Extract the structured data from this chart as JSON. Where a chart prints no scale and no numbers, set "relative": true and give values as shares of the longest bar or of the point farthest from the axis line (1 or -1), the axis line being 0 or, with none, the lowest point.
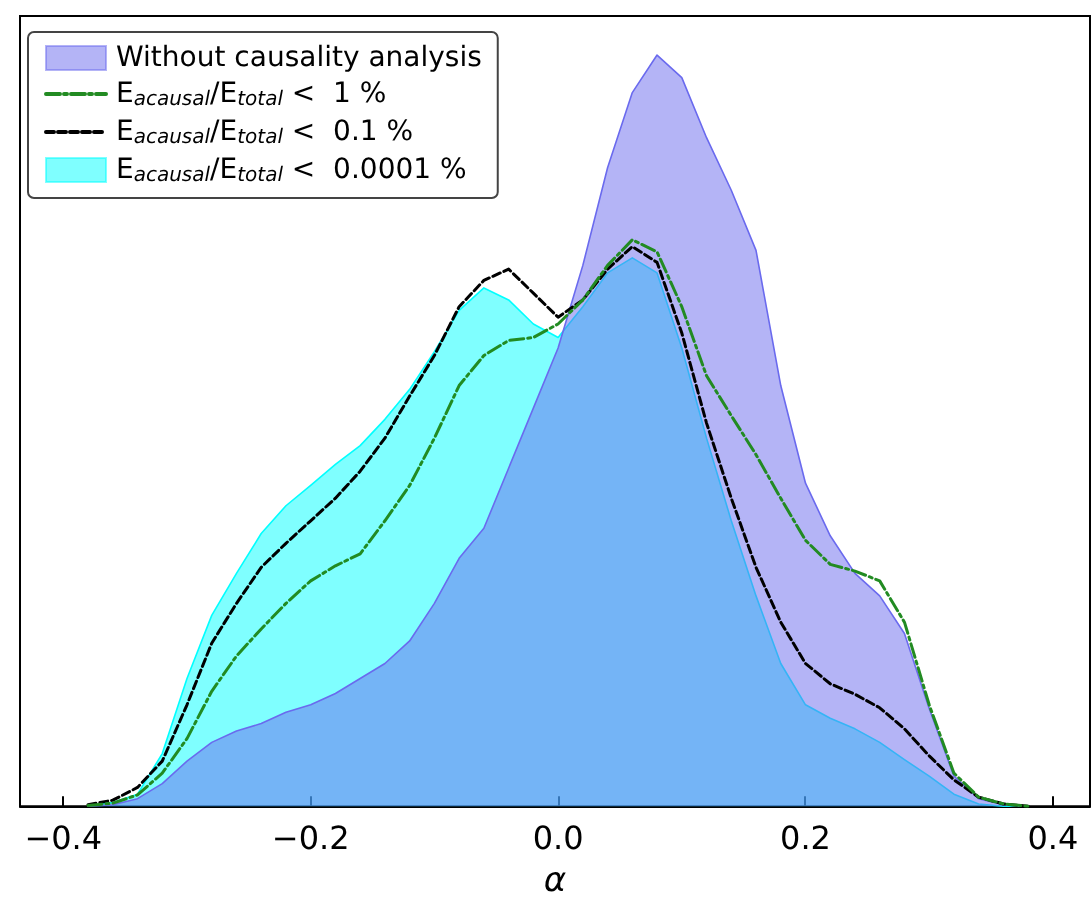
{
  "chart_data": {
    "type": "line",
    "relative": true,
    "xlabel": "α",
    "legend": "top left",
    "grid": false,
    "marker": "none",
    "x": [
      -0.38,
      -0.36,
      -0.34,
      -0.32,
      -0.3,
      -0.28,
      -0.26,
      -0.24,
      -0.22,
      -0.2,
      -0.18,
      -0.16,
      -0.14,
      -0.12,
      -0.1,
      -0.08,
      -0.06,
      -0.04,
      -0.02,
      0,
      0.02,
      0.04,
      0.06,
      0.08,
      0.1,
      0.12,
      0.14,
      0.16,
      0.18,
      0.2,
      0.22,
      0.24,
      0.26,
      0.28,
      0.3,
      0.32,
      0.34,
      0.36,
      0.38
    ],
    "xlim": [
      -0.435,
      0.43
    ],
    "xticks": [
      -0.4,
      -0.2,
      {
        "value": 0,
        "label": "0.0"
      },
      0.2,
      0.4
    ],
    "series": [
      {
        "name": "Without causality analysis",
        "type": "area",
        "color": "#6a6aee",
        "values": [
          0,
          0.002,
          0.01,
          0.03,
          0.06,
          0.085,
          0.1,
          0.11,
          0.125,
          0.135,
          0.15,
          0.17,
          0.19,
          0.22,
          0.27,
          0.33,
          0.37,
          0.45,
          0.53,
          0.61,
          0.72,
          0.85,
          0.95,
          1.0,
          0.97,
          0.89,
          0.82,
          0.74,
          0.56,
          0.43,
          0.36,
          0.31,
          0.28,
          0.23,
          0.13,
          0.04,
          0.01,
          0.002,
          0
        ]
      },
      {
        "name": "E$_{acausal}$/E$_{total}$ <  1 %",
        "type": "line",
        "color": "#228b22",
        "line_style": "dashdot",
        "values": [
          0.001,
          0.004,
          0.015,
          0.044,
          0.09,
          0.153,
          0.2,
          0.236,
          0.27,
          0.3,
          0.32,
          0.336,
          0.38,
          0.427,
          0.49,
          0.56,
          0.6,
          0.62,
          0.624,
          0.642,
          0.674,
          0.72,
          0.754,
          0.738,
          0.665,
          0.573,
          0.52,
          0.468,
          0.41,
          0.354,
          0.322,
          0.313,
          0.3,
          0.245,
          0.135,
          0.044,
          0.012,
          0.003,
          0
        ]
      },
      {
        "name": "E$_{acausal}$/E$_{total}$ <  0.1 %",
        "type": "line",
        "color": "#000000",
        "line_style": "dashed",
        "values": [
          0.002,
          0.008,
          0.025,
          0.06,
          0.135,
          0.217,
          0.27,
          0.318,
          0.35,
          0.38,
          0.41,
          0.446,
          0.49,
          0.546,
          0.6,
          0.665,
          0.7,
          0.715,
          0.683,
          0.651,
          0.674,
          0.715,
          0.745,
          0.724,
          0.63,
          0.51,
          0.41,
          0.318,
          0.245,
          0.19,
          0.163,
          0.149,
          0.131,
          0.103,
          0.067,
          0.035,
          0.012,
          0.003,
          0
        ]
      },
      {
        "name": "E$_{acausal}$/E$_{total}$ <  0.0001 %",
        "type": "area",
        "color": "#00ffff",
        "values": [
          0.001,
          0.005,
          0.016,
          0.07,
          0.17,
          0.254,
          0.31,
          0.363,
          0.4,
          0.427,
          0.455,
          0.48,
          0.515,
          0.555,
          0.605,
          0.66,
          0.69,
          0.674,
          0.642,
          0.624,
          0.665,
          0.71,
          0.73,
          0.71,
          0.61,
          0.49,
          0.38,
          0.28,
          0.19,
          0.135,
          0.117,
          0.103,
          0.085,
          0.062,
          0.04,
          0.016,
          0.003,
          0,
          0
        ]
      }
    ]
  }
}
